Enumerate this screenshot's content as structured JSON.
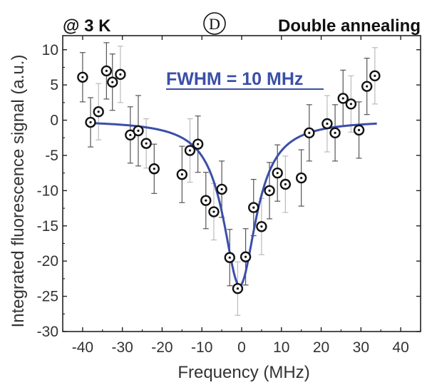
{
  "chart_data": {
    "type": "scatter",
    "title": "",
    "header_left": "@ 3 K",
    "header_right": "Double annealing",
    "panel_label": "D",
    "annotation": "FWHM = 10 MHz",
    "xlabel": "Frequency (MHz)",
    "ylabel": "Integrated fluorescence signal (a.u.)",
    "xlim": [
      -45,
      45
    ],
    "ylim": [
      -30,
      12
    ],
    "xticks": [
      -40,
      -30,
      -20,
      -10,
      0,
      10,
      20,
      30,
      40
    ],
    "yticks": [
      -30,
      -25,
      -20,
      -15,
      -10,
      -5,
      0,
      5,
      10
    ],
    "grid": false,
    "colors": {
      "fit": "#3a4fa8",
      "marker": "#111111",
      "errorbar_dark": "#555555",
      "errorbar_light": "#bbbbbb",
      "annotation": "#3a4fa8"
    },
    "series": [
      {
        "type": "scatter",
        "x": [
          -40,
          -38,
          -36,
          -34,
          -32.5,
          -30.5,
          -28,
          -26,
          -24,
          -22,
          -15,
          -13,
          -11,
          -9,
          -7,
          -5,
          -3,
          -1,
          1,
          3,
          5,
          7,
          9,
          11,
          15,
          17,
          21.5,
          23.5,
          25.5,
          27.5,
          29.5,
          31.5,
          33.5
        ],
        "y": [
          6.1,
          -0.3,
          1.2,
          7.0,
          5.4,
          6.5,
          -2.1,
          -1.5,
          -3.3,
          -6.9,
          -7.7,
          -4.3,
          -3.4,
          -11.4,
          -13.0,
          -9.8,
          -19.5,
          -23.9,
          -19.4,
          -12.4,
          -15.1,
          -10.0,
          -7.5,
          -9.1,
          -8.2,
          -1.8,
          -0.5,
          -1.8,
          3.1,
          2.3,
          -1.4,
          4.8,
          6.3
        ],
        "err": [
          3.5,
          3.5,
          4.0,
          4.0,
          4.0,
          4.0,
          4.0,
          5.0,
          3.5,
          3.5,
          4.0,
          4.5,
          4.0,
          4.0,
          4.0,
          4.0,
          4.0,
          3.8,
          4.0,
          4.0,
          4.0,
          4.0,
          4.0,
          4.0,
          4.0,
          4.0,
          4.0,
          4.0,
          4.0,
          4.0,
          4.0,
          4.0,
          4.0
        ]
      },
      {
        "type": "line",
        "lorentzian": {
          "center": -0.5,
          "fwhm": 10,
          "amplitude": -23.5,
          "baseline": 0
        },
        "x_range": [
          -38,
          34
        ]
      }
    ]
  }
}
